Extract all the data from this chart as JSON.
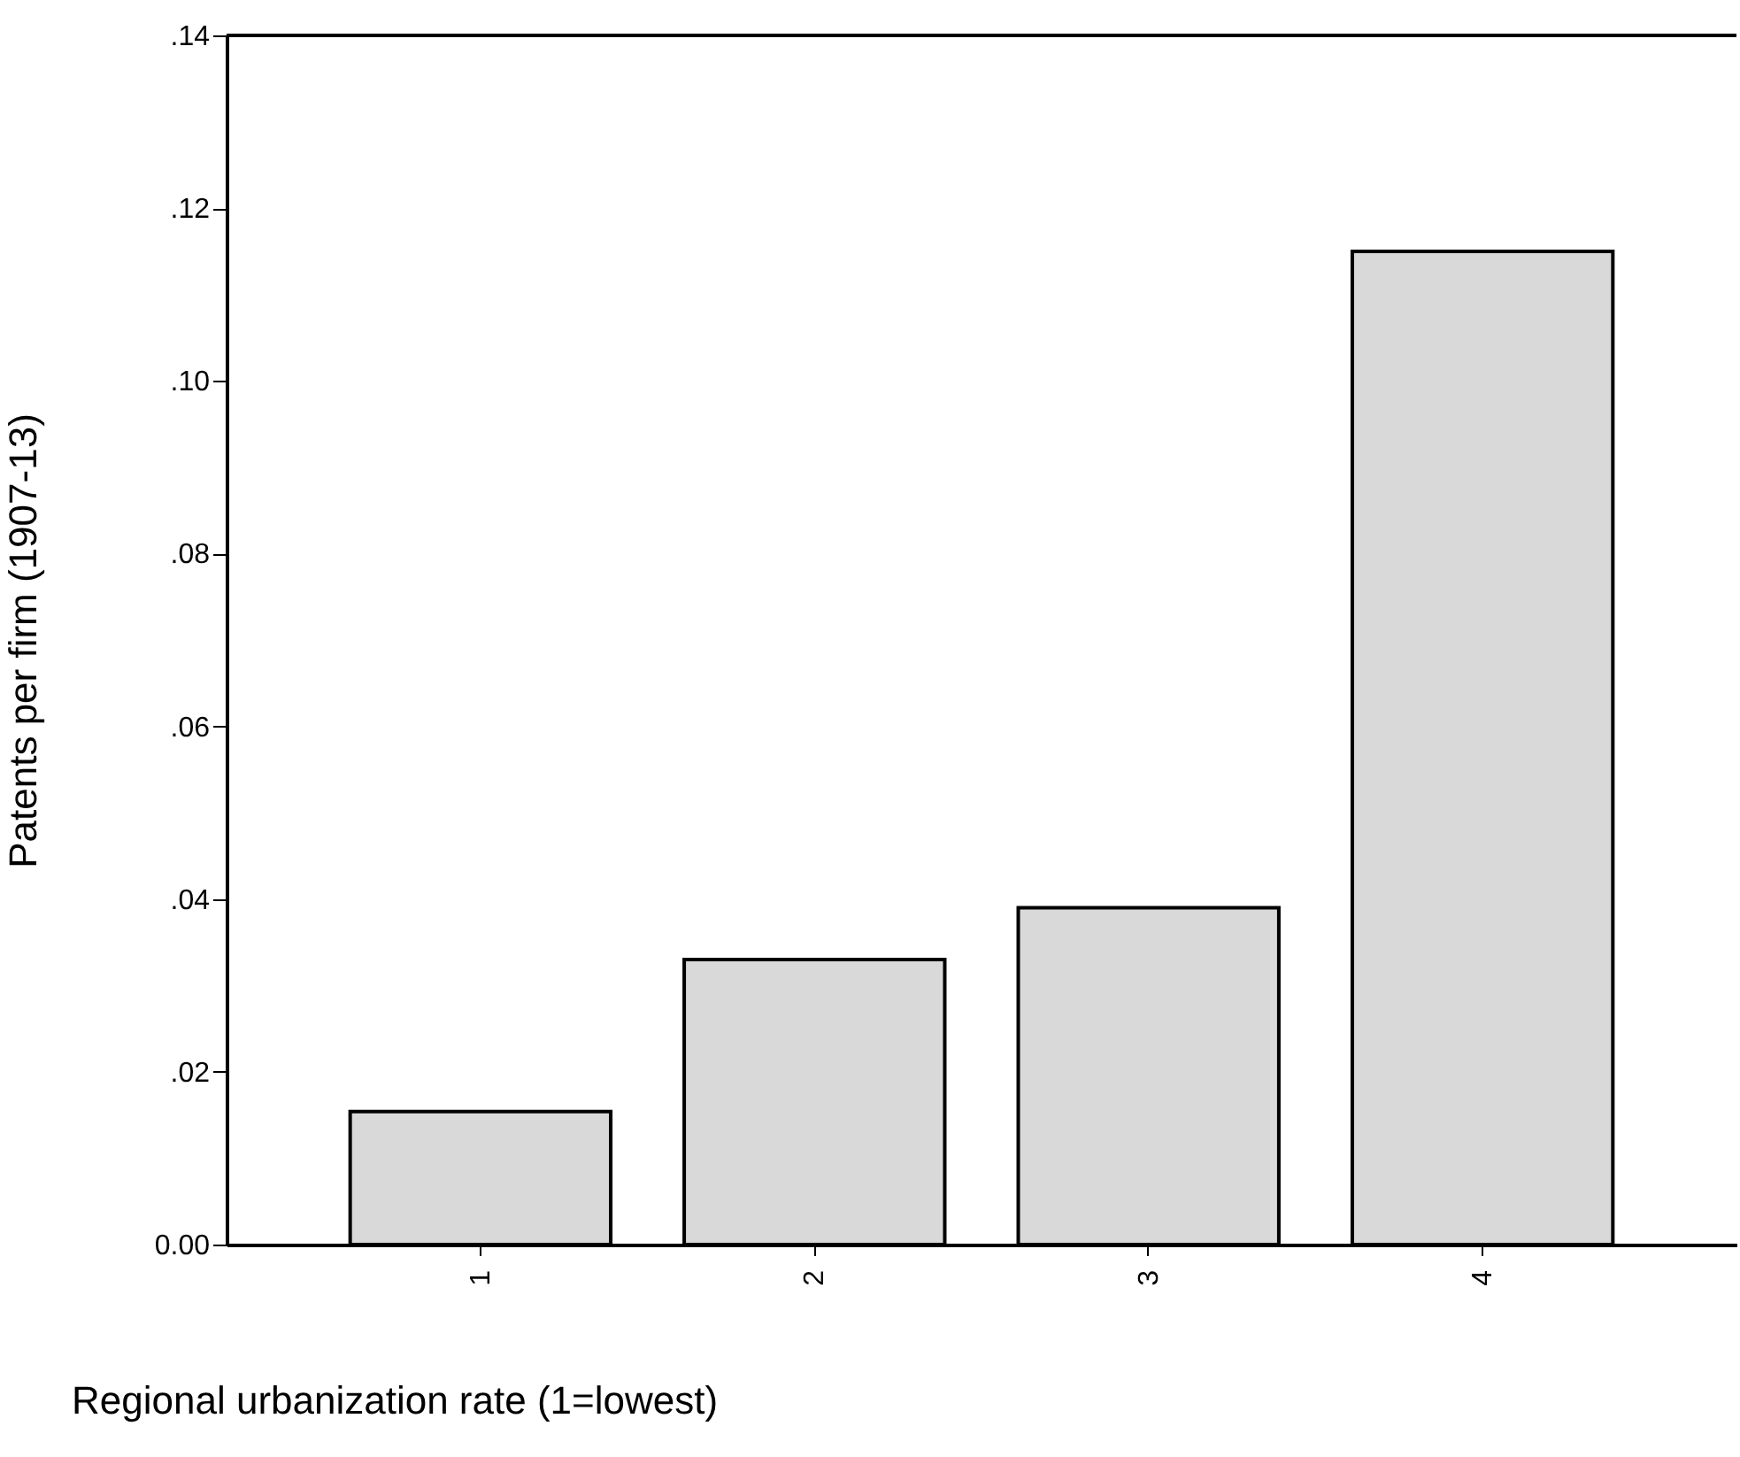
{
  "chart_data": {
    "type": "bar",
    "xlabel": "Regional urbanization rate (1=lowest)",
    "ylabel": "Patents per firm (1907-13)",
    "categories": [
      "1",
      "2",
      "3",
      "4"
    ],
    "values": [
      0.0154,
      0.033,
      0.039,
      0.115
    ],
    "color": "#d9d9d9",
    "ylim": [
      0,
      0.14
    ],
    "yticks": [
      {
        "value": 0,
        "label": "0.00"
      },
      {
        "value": 0.02,
        "label": ".02"
      },
      {
        "value": 0.04,
        "label": ".04"
      },
      {
        "value": 0.06,
        "label": ".06"
      },
      {
        "value": 0.08,
        "label": ".08"
      },
      {
        "value": 0.1,
        "label": ".10"
      },
      {
        "value": 0.12,
        "label": ".12"
      },
      {
        "value": 0.14,
        "label": ".14"
      }
    ],
    "grid": false
  }
}
